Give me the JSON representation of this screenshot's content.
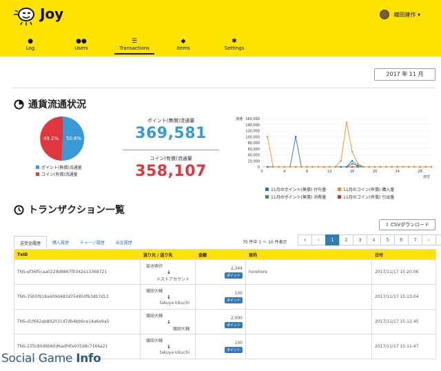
{
  "app": {
    "name": "Joy"
  },
  "user": {
    "name": "織田建作 ▾"
  },
  "nav": [
    {
      "label": "Log",
      "icon": "person-icon"
    },
    {
      "label": "Users",
      "icon": "users-icon"
    },
    {
      "label": "Transactions",
      "icon": "list-icon"
    },
    {
      "label": "Items",
      "icon": "tag-icon"
    },
    {
      "label": "Settings",
      "icon": "gear-icon"
    }
  ],
  "date_selector": "2017 年 11 月",
  "currency": {
    "title": "通貨流通状況",
    "pie": {
      "free_pct": "50.8%",
      "paid_pct": "49.2%",
      "free_value": 50.8,
      "paid_value": 49.2,
      "colors": {
        "free": "#3a9ad9",
        "paid": "#e0363d"
      }
    },
    "pie_legend": [
      {
        "label": "ポイント(無償)流通量",
        "color": "#3a9ad9"
      },
      {
        "label": "コイン(有償)流通量",
        "color": "#e0363d"
      }
    ],
    "point_label": "ポイント(無償)流通量",
    "point_value": "369,581",
    "coin_label": "コイン(有償)流通量",
    "coin_value": "358,107"
  },
  "chart_data": {
    "type": "line",
    "ylabel": "流通",
    "xlabel": "日付",
    "ylim": [
      0,
      160000
    ],
    "y_ticks": [
      "160,000",
      "140,000",
      "120,000",
      "100,000",
      "80,000",
      "60,000",
      "40,000",
      "20,000",
      "0"
    ],
    "x_ticks": [
      "0",
      "4",
      "8",
      "12",
      "16",
      "20",
      "24",
      "28"
    ],
    "x": [
      1,
      2,
      3,
      4,
      5,
      6,
      7,
      8,
      9,
      10,
      11,
      12,
      13,
      14,
      15,
      16,
      17,
      18,
      19,
      20,
      21,
      22,
      23,
      24,
      25,
      26,
      27,
      28,
      29,
      30
    ],
    "series": [
      {
        "name": "11月のポイント(無償) 付与量",
        "color": "#2a6db5",
        "values": [
          0,
          0,
          0,
          0,
          0,
          100000,
          0,
          0,
          0,
          0,
          0,
          0,
          0,
          0,
          0,
          20000,
          0,
          0,
          0,
          0,
          0,
          0,
          0,
          0,
          0,
          0,
          0,
          0,
          0,
          0
        ]
      },
      {
        "name": "11月のコイン(有償) 購入量",
        "color": "#f08a24",
        "values": [
          100000,
          0,
          0,
          0,
          0,
          0,
          0,
          0,
          0,
          0,
          0,
          0,
          0,
          20000,
          148000,
          50000,
          10000,
          0,
          0,
          0,
          0,
          0,
          0,
          0,
          0,
          0,
          0,
          0,
          0,
          0
        ]
      },
      {
        "name": "11月のポイント(無償) 消費量",
        "color": "#2e9e44",
        "values": [
          0,
          0,
          0,
          0,
          0,
          0,
          0,
          0,
          0,
          0,
          0,
          0,
          0,
          0,
          0,
          10000,
          5000,
          0,
          0,
          0,
          0,
          0,
          0,
          0,
          0,
          0,
          0,
          0,
          0,
          0
        ]
      },
      {
        "name": "11月のコイン(有償) 引出量",
        "color": "#d62728",
        "values": [
          0,
          0,
          0,
          0,
          0,
          0,
          0,
          0,
          0,
          0,
          0,
          0,
          0,
          0,
          0,
          0,
          0,
          0,
          0,
          0,
          0,
          0,
          0,
          0,
          0,
          0,
          0,
          0,
          0,
          0
        ]
      }
    ]
  },
  "transactions": {
    "title": "トランザクション一覧",
    "csv_button": "CSVダウンロード",
    "tabs": [
      "送受金履歴",
      "購入履歴",
      "チャージ履歴",
      "出金履歴"
    ],
    "count": "70 件中 1 ～ 10 件表示",
    "pager": [
      "«",
      "‹",
      "1",
      "2",
      "3",
      "4",
      "5",
      "6",
      "7",
      "›",
      "»"
    ],
    "columns": [
      "TxID",
      "送り元 / 送り先",
      "金額",
      "目的",
      "日付"
    ],
    "rows": [
      {
        "txid": "TNS-ef36f5caa0229d8867f0342e13368721",
        "from": "菊池琢弥",
        "to": "テストアカウント",
        "amount": "2,344",
        "badge": "ポイント",
        "purpose": "horehore",
        "date": "2017/11/17 15:20:06"
      },
      {
        "txid": "TNS-35b5f918a409d483d754950f63db7d13",
        "from": "織田大輔",
        "to": "takuya kikuchi",
        "amount": "100",
        "badge": "ポイント",
        "purpose": "",
        "date": "2017/11/17 15:13:04"
      },
      {
        "txid": "TNS-d1f662ab802031d7db4bb6ce14a6e9a5",
        "from": "織田大輔",
        "to": "織田大輔",
        "amount": "2,000",
        "badge": "ポイント",
        "purpose": "",
        "date": "2017/11/17 15:12:45"
      },
      {
        "txid": "TNS-235c80d6b60d6adf4fa935d8c7166a21",
        "from": "織田大輔",
        "to": "takuya kikuchi",
        "amount": "100",
        "badge": "ポイント",
        "purpose": "",
        "date": "2017/11/17 15:11:47"
      }
    ]
  },
  "watermark": {
    "a": "Social Game ",
    "b": "Info"
  }
}
